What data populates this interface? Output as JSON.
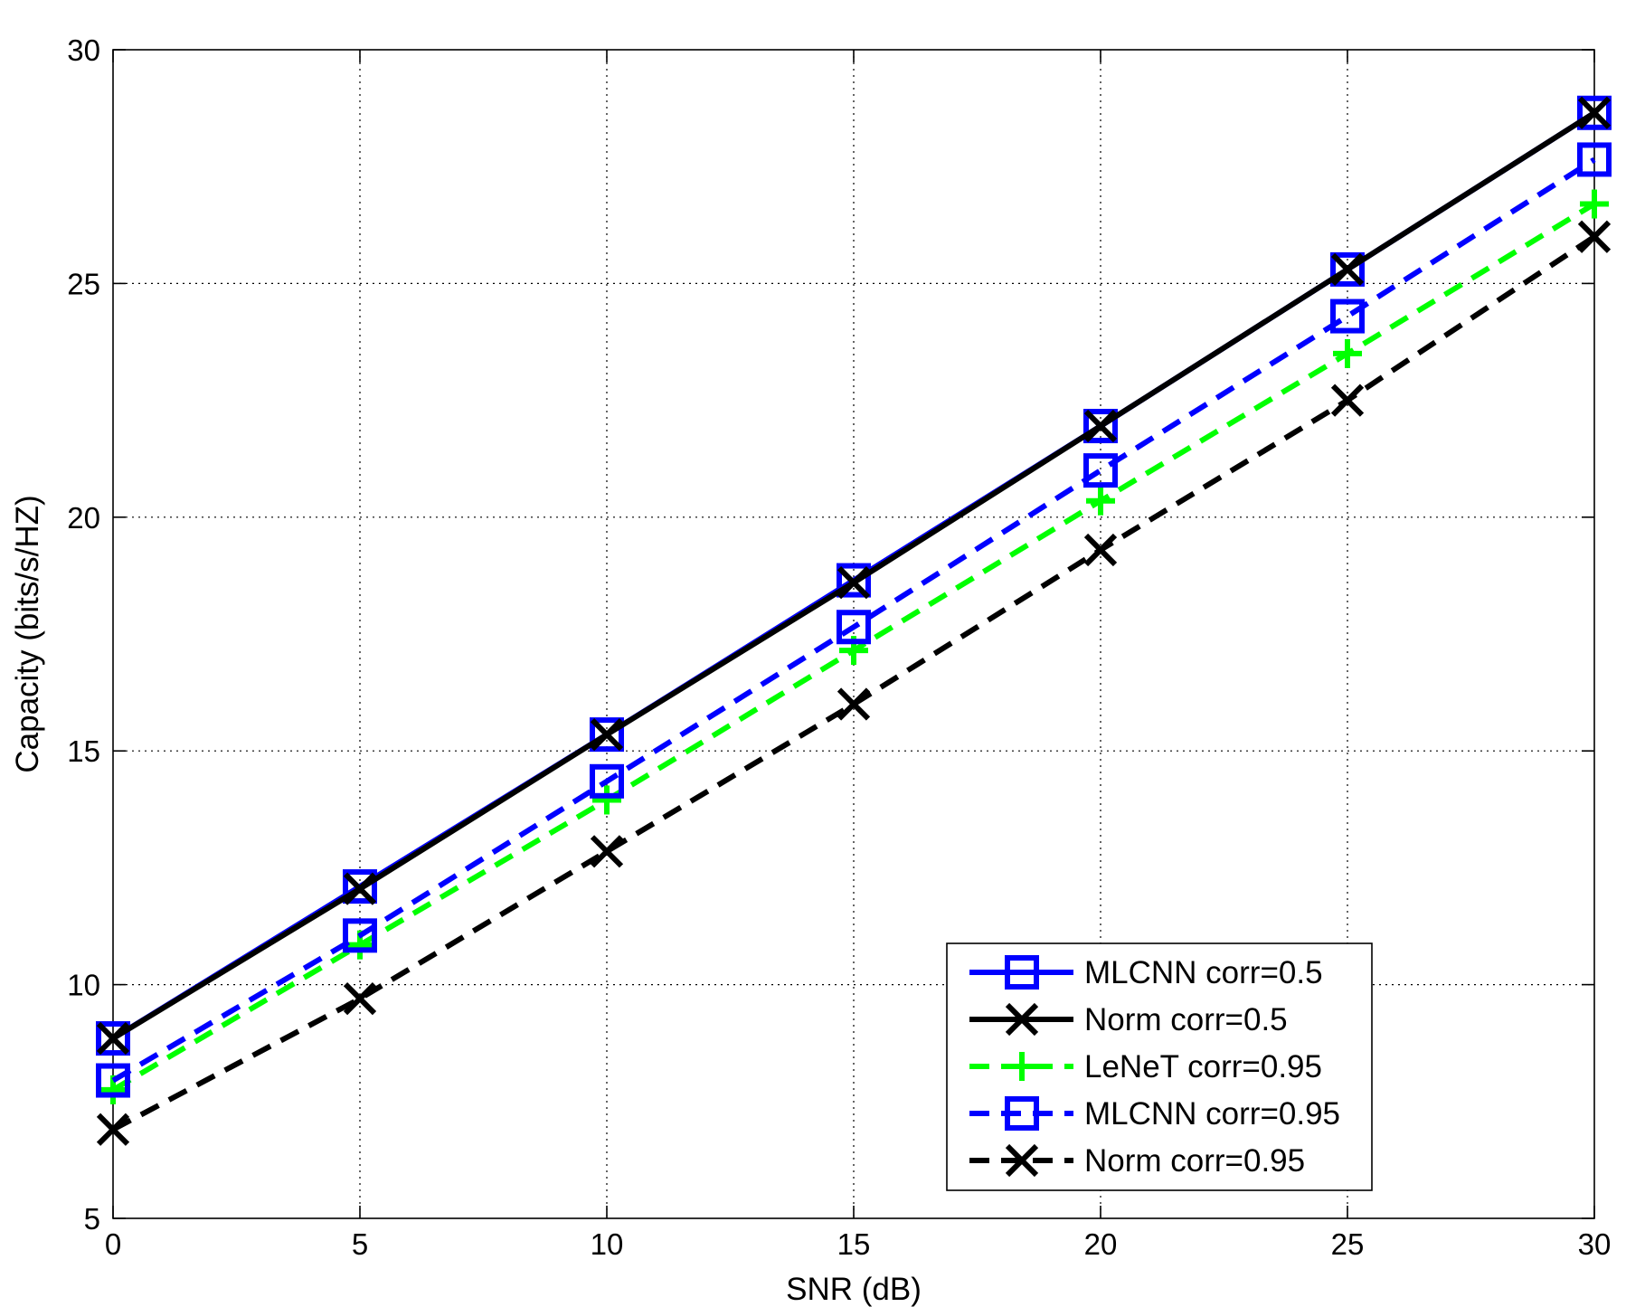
{
  "chart_data": {
    "type": "line",
    "title": "",
    "xlabel": "SNR (dB)",
    "ylabel": "Capacity (bits/s/HZ)",
    "xlim": [
      0,
      30
    ],
    "ylim": [
      5,
      30
    ],
    "xticks": [
      0,
      5,
      10,
      15,
      20,
      25,
      30
    ],
    "yticks": [
      5,
      10,
      15,
      20,
      25,
      30
    ],
    "grid": true,
    "legend_position": "bottom-right",
    "x": [
      0,
      5,
      10,
      15,
      20,
      25,
      30
    ],
    "series": [
      {
        "name": "MLCNN corr=0.5",
        "color": "#0000ff",
        "line_style": "solid",
        "marker": "square",
        "values": [
          8.85,
          12.1,
          15.35,
          18.65,
          21.95,
          25.3,
          28.65
        ]
      },
      {
        "name": "Norm corr=0.5",
        "color": "#000000",
        "line_style": "solid",
        "marker": "x",
        "values": [
          8.85,
          12.05,
          15.35,
          18.6,
          21.95,
          25.3,
          28.65
        ]
      },
      {
        "name": "LeNeT corr=0.95",
        "color": "#00ff00",
        "line_style": "dashed",
        "marker": "plus",
        "values": [
          7.75,
          10.85,
          13.95,
          17.15,
          20.35,
          23.5,
          26.7
        ]
      },
      {
        "name": "MLCNN corr=0.95",
        "color": "#0000ff",
        "line_style": "dashed",
        "marker": "square",
        "values": [
          7.95,
          11.05,
          14.35,
          17.65,
          21.0,
          24.3,
          27.65
        ]
      },
      {
        "name": "Norm corr=0.95",
        "color": "#000000",
        "line_style": "dashed",
        "marker": "x",
        "values": [
          6.9,
          9.7,
          12.85,
          16.0,
          19.3,
          22.5,
          26.0
        ]
      }
    ]
  }
}
